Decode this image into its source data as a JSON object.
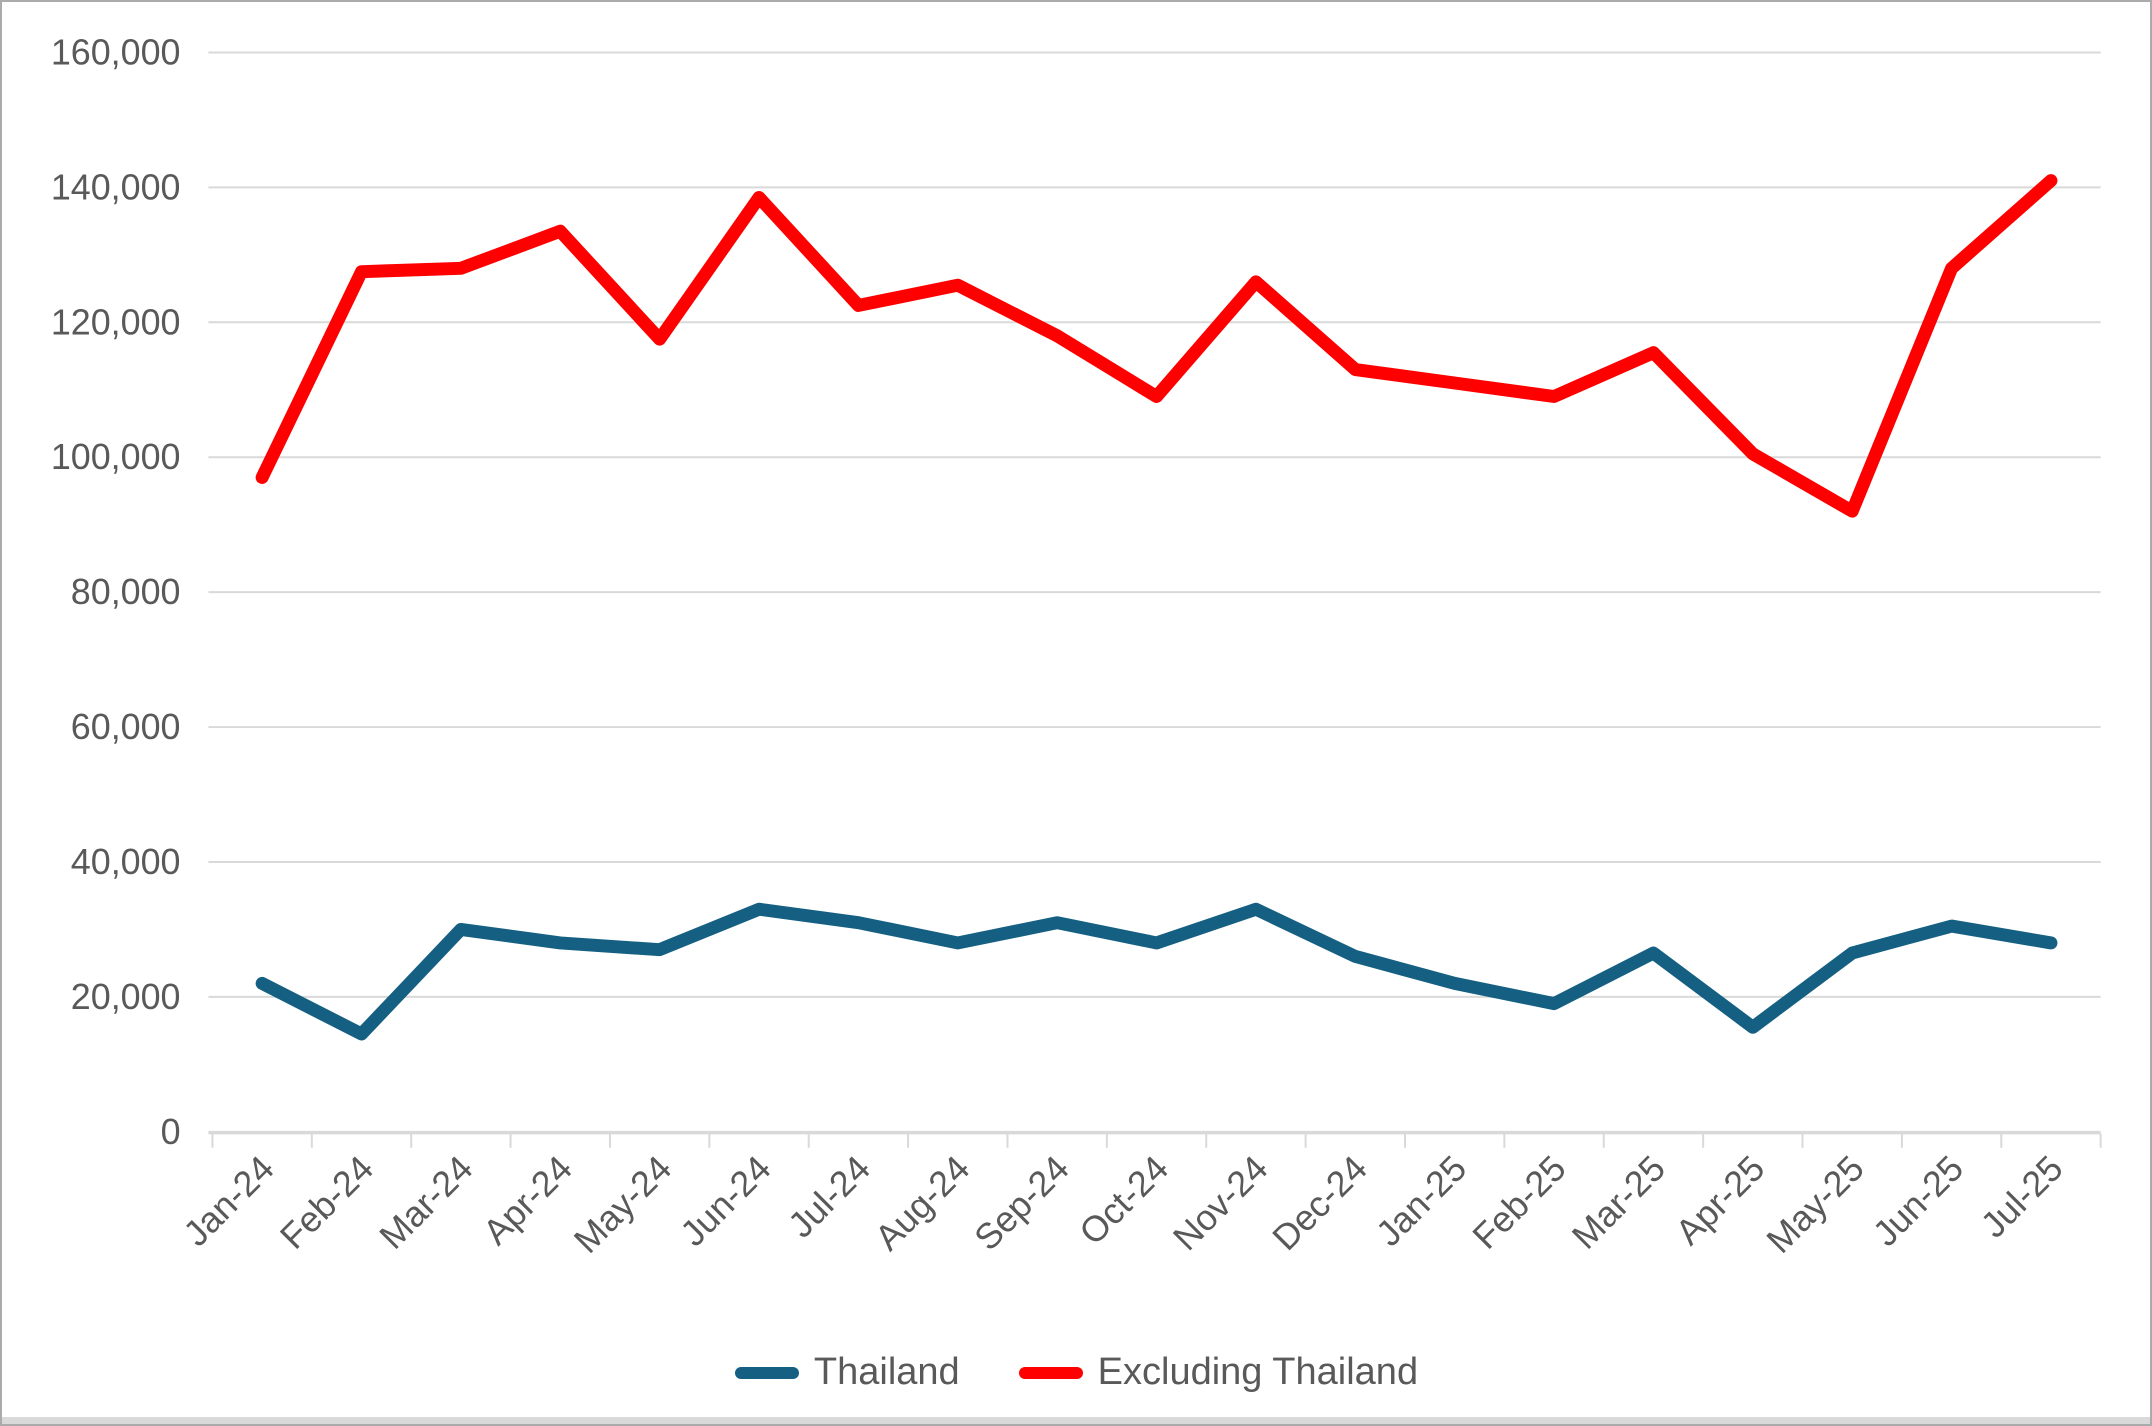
{
  "chart_data": {
    "type": "line",
    "categories": [
      "Jan-24",
      "Feb-24",
      "Mar-24",
      "Apr-24",
      "May-24",
      "Jun-24",
      "Jul-24",
      "Aug-24",
      "Sep-24",
      "Oct-24",
      "Nov-24",
      "Dec-24",
      "Jan-25",
      "Feb-25",
      "Mar-25",
      "Apr-25",
      "May-25",
      "Jun-25",
      "Jul-25"
    ],
    "series": [
      {
        "name": "Thailand",
        "color": "#156082",
        "values": [
          22000,
          14500,
          30000,
          28000,
          27000,
          33000,
          31000,
          28000,
          31000,
          28000,
          33000,
          26000,
          22000,
          19000,
          26500,
          15500,
          26500,
          30500,
          28000
        ]
      },
      {
        "name": "Excluding Thailand",
        "color": "#FF0000",
        "values": [
          97000,
          127500,
          128000,
          133500,
          117500,
          138500,
          122500,
          125500,
          118000,
          109000,
          126000,
          113000,
          111000,
          109000,
          115500,
          100500,
          92000,
          128000,
          141000
        ]
      }
    ],
    "title": "",
    "xlabel": "",
    "ylabel": "",
    "ylim": [
      0,
      160000
    ],
    "ytick_step": 20000,
    "ytick_labels": [
      "0",
      "20,000",
      "40,000",
      "60,000",
      "80,000",
      "100,000",
      "120,000",
      "140,000",
      "160,000"
    ],
    "grid": true,
    "legend_position": "bottom"
  },
  "legend": {
    "items": [
      {
        "label": "Thailand",
        "color": "#156082"
      },
      {
        "label": "Excluding Thailand",
        "color": "#FF0000"
      }
    ]
  },
  "colors": {
    "gridline": "#d9d9d9",
    "axis_text": "#595959",
    "border": "#ababab"
  }
}
